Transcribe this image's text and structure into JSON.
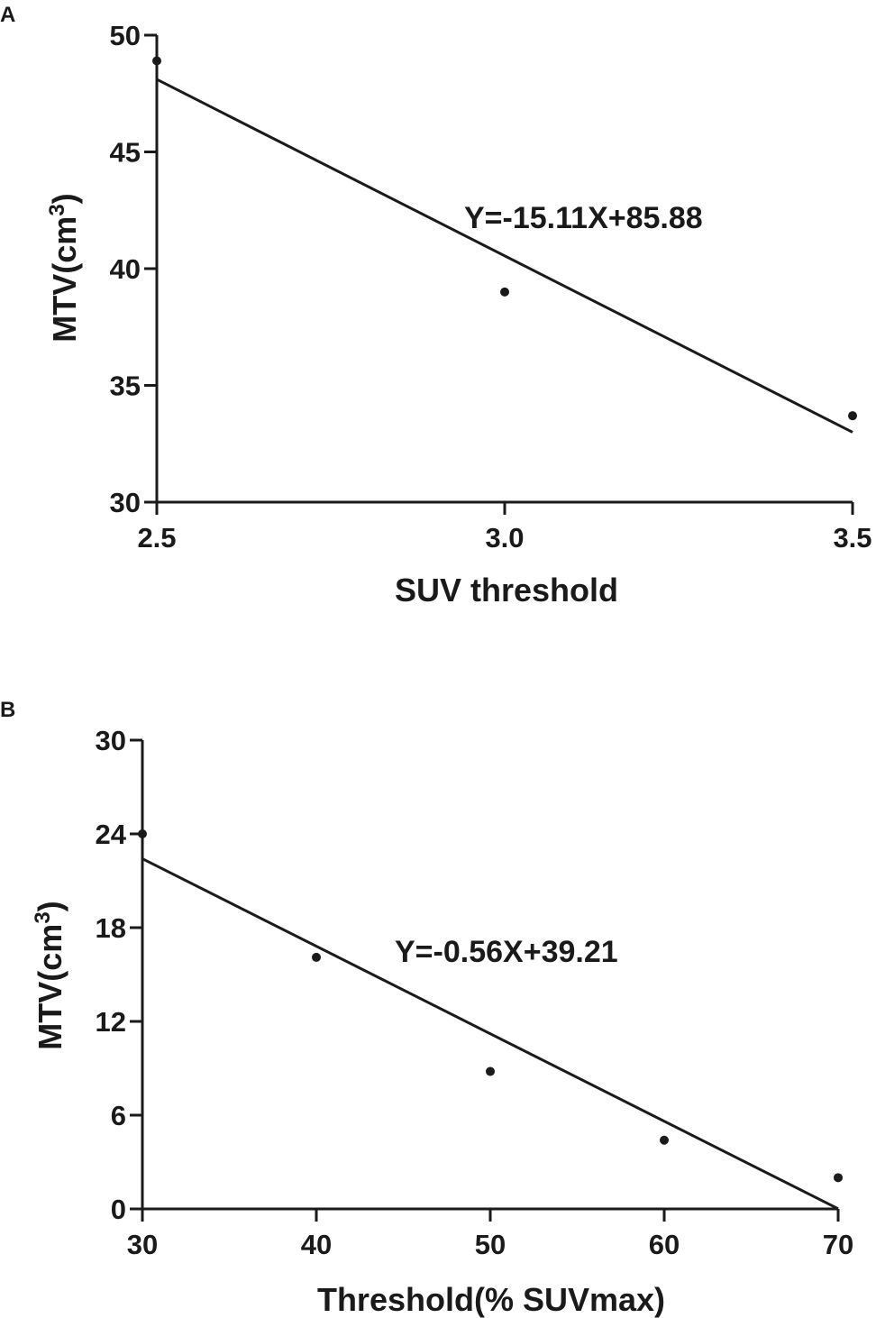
{
  "chart_data": [
    {
      "type": "scatter",
      "panel_label": "A",
      "xlabel": "SUV threshold",
      "ylabel": "MTV(cm",
      "ylabel_superscript": "3",
      "ylabel_suffix": ")",
      "xlim": [
        2.5,
        3.5
      ],
      "ylim": [
        30,
        50
      ],
      "x_ticks": [
        2.5,
        3.0,
        3.5
      ],
      "x_tick_labels": [
        "2.5",
        "3.0",
        "3.5"
      ],
      "y_ticks": [
        30,
        35,
        40,
        45,
        50
      ],
      "y_tick_labels": [
        "30",
        "35",
        "40",
        "45",
        "50"
      ],
      "points": [
        {
          "x": 2.5,
          "y": 48.9
        },
        {
          "x": 3.0,
          "y": 39.0
        },
        {
          "x": 3.5,
          "y": 33.7
        }
      ],
      "fit_line": {
        "slope": -15.11,
        "intercept": 85.88,
        "x_range": [
          2.5,
          3.5
        ]
      },
      "equation": "Y=-15.11X+85.88",
      "grid": false,
      "legend": "none"
    },
    {
      "type": "scatter",
      "panel_label": "B",
      "xlabel": "Threshold(% SUVmax)",
      "ylabel": "MTV(cm",
      "ylabel_superscript": "3",
      "ylabel_suffix": ")",
      "xlim": [
        30,
        70
      ],
      "ylim": [
        0,
        30
      ],
      "x_ticks": [
        30,
        40,
        50,
        60,
        70
      ],
      "x_tick_labels": [
        "30",
        "40",
        "50",
        "60",
        "70"
      ],
      "y_ticks": [
        0,
        6,
        12,
        18,
        24,
        30
      ],
      "y_tick_labels": [
        "0",
        "6",
        "12",
        "18",
        "24",
        "30"
      ],
      "points": [
        {
          "x": 30,
          "y": 24.0
        },
        {
          "x": 40,
          "y": 16.1
        },
        {
          "x": 50,
          "y": 8.8
        },
        {
          "x": 60,
          "y": 4.4
        },
        {
          "x": 70,
          "y": 2.0
        }
      ],
      "fit_line": {
        "slope": -0.56,
        "intercept": 39.21,
        "x_range": [
          30,
          70
        ]
      },
      "equation": "Y=-0.56X+39.21",
      "grid": false,
      "legend": "none"
    }
  ]
}
